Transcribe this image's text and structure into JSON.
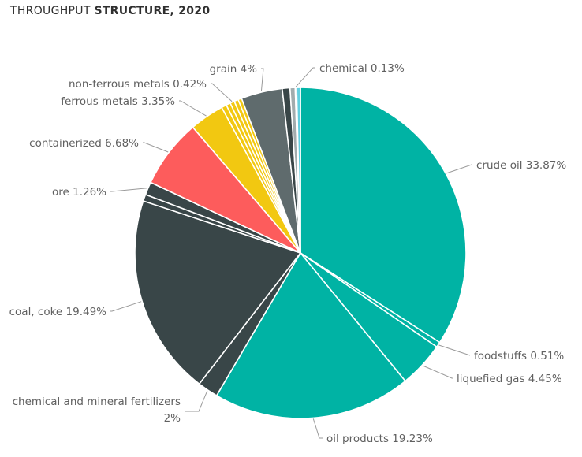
{
  "chart_data": {
    "type": "pie",
    "title_light": "THROUGHPUT ",
    "title_bold": "STRUCTURE, 2020",
    "start_angle_deg": 0,
    "slices": [
      {
        "label": "crude oil 33.87%",
        "value": 33.87,
        "color": "#00b3a4"
      },
      {
        "label": "foodstuffs 0.51%",
        "value": 0.51,
        "color": "#00b3a4"
      },
      {
        "label": "liquefied gas 4.45%",
        "value": 4.45,
        "color": "#00b3a4"
      },
      {
        "label": "oil products 19.23%",
        "value": 19.23,
        "color": "#00b3a4"
      },
      {
        "label": "chemical and mineral fertilizers",
        "label2": "2%",
        "value": 2.0,
        "color": "#394648"
      },
      {
        "label": "coal, coke 19.49%",
        "value": 19.49,
        "color": "#394648"
      },
      {
        "label": "",
        "value": 0.65,
        "color": "#394648"
      },
      {
        "label": "ore 1.26%",
        "value": 1.26,
        "color": "#394648"
      },
      {
        "label": "containerized 6.68%",
        "value": 6.68,
        "color": "#fd5c5c"
      },
      {
        "label": "ferrous metals 3.35%",
        "value": 3.35,
        "color": "#f2c811"
      },
      {
        "label": "",
        "value": 0.5,
        "color": "#f2c811"
      },
      {
        "label": "",
        "value": 0.42,
        "color": "#f2c811"
      },
      {
        "label": "non-ferrous metals 0.42%",
        "value": 0.42,
        "color": "#f2c811"
      },
      {
        "label": "",
        "value": 0.4,
        "color": "#f2c811"
      },
      {
        "label": "",
        "value": 0.35,
        "color": "#f2c811"
      },
      {
        "label": "grain 4%",
        "value": 4.0,
        "color": "#5f6b6d"
      },
      {
        "label": "",
        "value": 0.75,
        "color": "#394648"
      },
      {
        "label": "",
        "value": 0.5,
        "color": "#a2acae"
      },
      {
        "label": "chemical 0.13%",
        "value": 0.13,
        "color": "#00a8c8"
      },
      {
        "label": "",
        "value": 0.37,
        "color": "#62cfe0"
      }
    ]
  }
}
